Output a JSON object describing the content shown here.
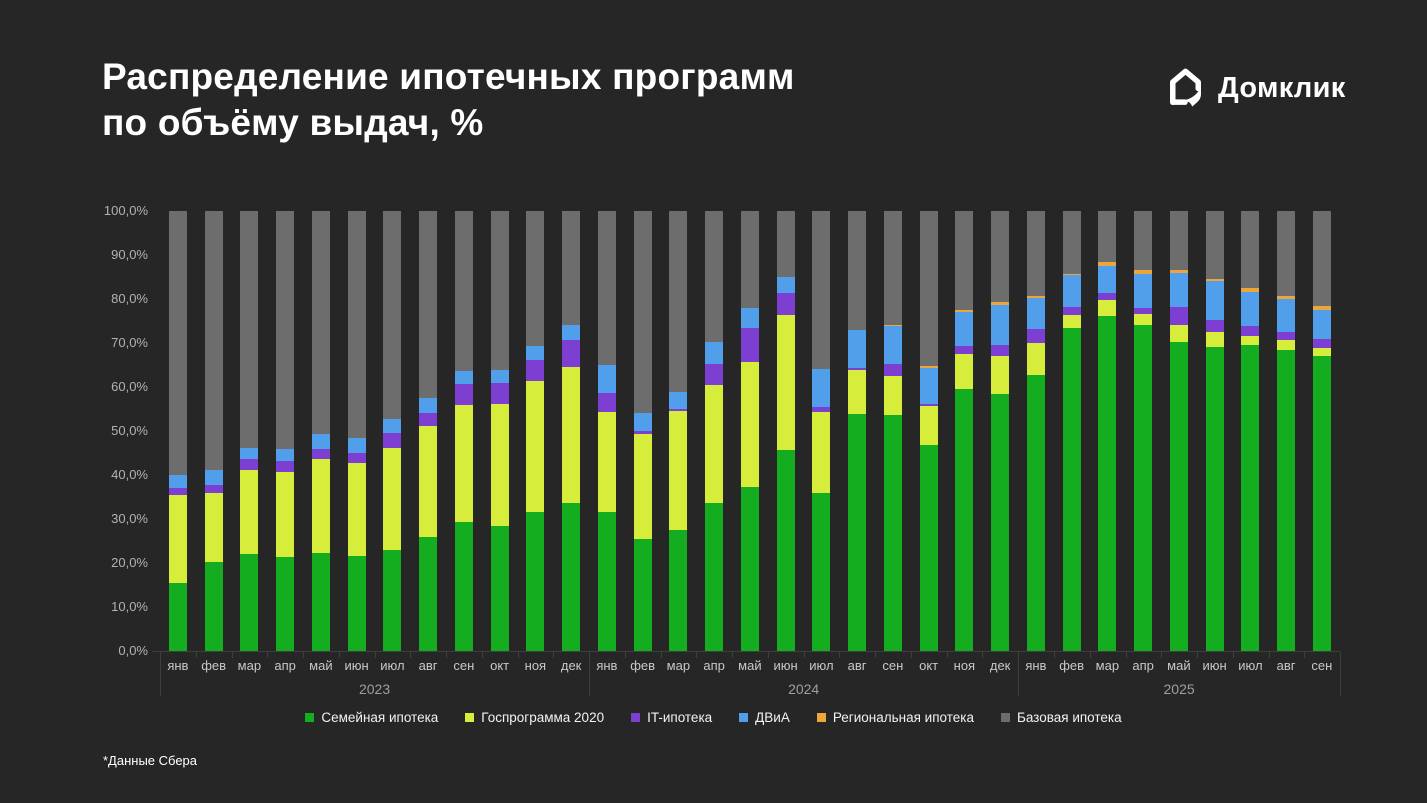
{
  "page": {
    "background": "#262626"
  },
  "header": {
    "title_line1": "Распределение ипотечных программ",
    "title_line2": "по объёму выдач, %",
    "brand": "Домклик"
  },
  "footnote": "*Данные Сбера",
  "chart_data": {
    "type": "bar",
    "subtype": "stacked-100-percent",
    "title": "Распределение ипотечных программ по объёму выдач, %",
    "unit": "%",
    "ylim": [
      0,
      100
    ],
    "grid": false,
    "legend_position": "bottom",
    "yticks": [
      "100,0%",
      "90,0%",
      "80,0%",
      "70,0%",
      "60,0%",
      "50,0%",
      "40,0%",
      "30,0%",
      "20,0%",
      "10,0%",
      "0,0%"
    ],
    "x": [
      "янв",
      "фев",
      "мар",
      "апр",
      "май",
      "июн",
      "июл",
      "авг",
      "сен",
      "окт",
      "ноя",
      "дек",
      "янв",
      "фев",
      "мар",
      "апр",
      "май",
      "июн",
      "июл",
      "авг",
      "сен",
      "окт",
      "ноя",
      "дек",
      "янв",
      "фев",
      "мар",
      "апр",
      "май",
      "июн",
      "июл",
      "авг",
      "сен"
    ],
    "year_groups": [
      {
        "label": "2023",
        "start": 0,
        "count": 12
      },
      {
        "label": "2024",
        "start": 12,
        "count": 12
      },
      {
        "label": "2025",
        "start": 24,
        "count": 9
      }
    ],
    "series": [
      {
        "name": "Семейная ипотека",
        "color": "#13ad1f",
        "values": [
          15.5,
          20.2,
          22.1,
          21.4,
          22.3,
          21.6,
          23.0,
          25.9,
          29.4,
          28.3,
          31.5,
          33.6,
          31.5,
          25.5,
          27.4,
          33.6,
          37.2,
          45.6,
          35.9,
          53.8,
          53.7,
          46.9,
          59.5,
          58.3,
          62.7,
          73.3,
          76.1,
          74.2,
          70.2,
          69.2,
          69.5,
          68.3,
          67.0
        ]
      },
      {
        "name": "Госпрограмма 2020",
        "color": "#d6ee3b",
        "values": [
          20.0,
          15.8,
          19.1,
          19.3,
          21.4,
          21.2,
          23.2,
          25.2,
          26.6,
          27.9,
          29.8,
          31.0,
          22.8,
          23.9,
          27.1,
          26.8,
          28.5,
          30.7,
          18.4,
          10.0,
          8.8,
          8.8,
          8.1,
          8.7,
          7.2,
          3.0,
          3.6,
          2.5,
          4.0,
          3.3,
          2.0,
          2.3,
          1.9
        ]
      },
      {
        "name": "IT-ипотека",
        "color": "#7d3fd2",
        "values": [
          1.5,
          1.8,
          2.5,
          2.6,
          2.3,
          2.1,
          3.4,
          2.9,
          4.8,
          4.8,
          4.8,
          6.0,
          4.4,
          0.5,
          0.6,
          4.9,
          7.7,
          5.1,
          1.2,
          0.6,
          2.8,
          0.5,
          1.7,
          2.5,
          3.2,
          2.0,
          1.7,
          1.3,
          4.0,
          2.8,
          2.3,
          2.0,
          2.1
        ]
      },
      {
        "name": "ДВиА",
        "color": "#519fea",
        "values": [
          3.0,
          3.4,
          2.5,
          2.7,
          3.4,
          3.5,
          3.2,
          3.5,
          2.8,
          2.8,
          3.2,
          3.6,
          6.3,
          4.1,
          3.8,
          4.9,
          4.6,
          3.5,
          8.5,
          8.5,
          8.5,
          8.1,
          7.8,
          9.2,
          7.2,
          7.1,
          6.2,
          7.6,
          7.8,
          8.7,
          7.9,
          7.5,
          6.4
        ]
      },
      {
        "name": "Региональная ипотека",
        "color": "#eda63a",
        "values": [
          0,
          0,
          0,
          0,
          0,
          0,
          0,
          0,
          0,
          0,
          0,
          0,
          0,
          0,
          0,
          0,
          0,
          0,
          0,
          0,
          0.4,
          0.5,
          0.3,
          0.6,
          0.4,
          0.4,
          0.9,
          1.1,
          0.5,
          0.6,
          0.7,
          0.5,
          1.0
        ]
      },
      {
        "name": "Базовая ипотека",
        "color": "#6d6d6d",
        "values": [
          60.0,
          58.8,
          53.8,
          54.0,
          50.6,
          51.6,
          47.2,
          42.5,
          36.4,
          36.2,
          30.7,
          25.8,
          35.0,
          46.0,
          41.1,
          29.8,
          22.0,
          15.1,
          36.0,
          27.1,
          25.8,
          35.2,
          22.6,
          20.7,
          19.3,
          14.2,
          11.5,
          13.3,
          13.5,
          15.4,
          17.6,
          19.4,
          21.6
        ]
      }
    ]
  }
}
